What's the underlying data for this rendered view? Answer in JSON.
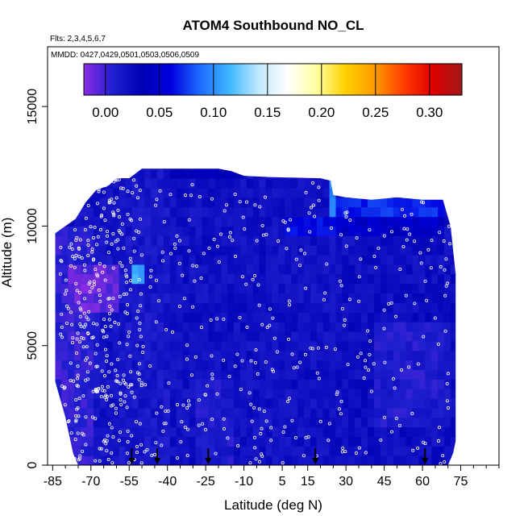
{
  "chart_data": {
    "type": "heatmap",
    "title": "ATOM4 Southbound NO_CL",
    "subtitle_flights": "Flts: 2,3,4,5,6,7",
    "subtitle_dates": "MMDD: 0427,0429,0501,0503,0506,0509",
    "xlabel": "Latitude (deg N)",
    "ylabel": "Altitude (m)",
    "xlim": [
      -87,
      90
    ],
    "ylim": [
      0,
      17500
    ],
    "x_ticks": [
      -85,
      -70,
      -55,
      -40,
      -25,
      -10,
      5,
      15,
      30,
      45,
      60,
      75
    ],
    "x_tick_labels": [
      "-85",
      "-70",
      "-55",
      "-40",
      "-25",
      "-10",
      "5",
      "15",
      "30",
      "45",
      "60",
      "75"
    ],
    "x_minor_ticks": [
      -80,
      -75,
      -65,
      -60,
      -50,
      -45,
      -35,
      -30,
      -20,
      -15,
      -5,
      0,
      10,
      20,
      25,
      35,
      40,
      50,
      55,
      65,
      70,
      80,
      85,
      90
    ],
    "y_ticks": [
      0,
      5000,
      10000,
      15000
    ],
    "y_tick_labels": [
      "0",
      "5000",
      "10000",
      "15000"
    ],
    "colorbar": {
      "range": [
        -0.02,
        0.33
      ],
      "ticks": [
        0.0,
        0.05,
        0.1,
        0.15,
        0.2,
        0.25,
        0.3
      ],
      "tick_labels": [
        "0.00",
        "0.05",
        "0.10",
        "0.15",
        "0.20",
        "0.25",
        "0.30"
      ],
      "colors": [
        "#8a2be2",
        "#2020d0",
        "#0000b4",
        "#0000e0",
        "#1e6cff",
        "#3fb6ff",
        "#bfe8ff",
        "#ffffff",
        "#ffff9e",
        "#ffd000",
        "#ff9a00",
        "#ff3c00",
        "#e00000",
        "#a01818"
      ]
    },
    "profile_latitudes": [
      -54,
      -44,
      -24,
      18,
      61
    ],
    "coverage": {
      "lat_min": -84,
      "lat_max": 73,
      "top_altitude": [
        [
          -84,
          9700
        ],
        [
          -80,
          10000
        ],
        [
          -76,
          10300
        ],
        [
          -72,
          11000
        ],
        [
          -68,
          11500
        ],
        [
          -63,
          11700
        ],
        [
          -60,
          12000
        ],
        [
          -55,
          12000
        ],
        [
          -50,
          12400
        ],
        [
          -20,
          12400
        ],
        [
          -15,
          12300
        ],
        [
          -10,
          12100
        ],
        [
          0,
          12050
        ],
        [
          20,
          12000
        ],
        [
          24,
          11900
        ],
        [
          25,
          11300
        ],
        [
          30,
          11200
        ],
        [
          40,
          11100
        ],
        [
          50,
          11200
        ],
        [
          60,
          11100
        ],
        [
          68,
          11100
        ],
        [
          71,
          10000
        ],
        [
          72,
          9000
        ],
        [
          73,
          8000
        ]
      ],
      "bottom_altitude": [
        [
          -84,
          3500
        ],
        [
          -80,
          2000
        ],
        [
          -77,
          500
        ],
        [
          -75,
          0
        ],
        [
          70,
          0
        ],
        [
          72,
          500
        ],
        [
          73,
          1000
        ]
      ]
    },
    "field_regions": [
      {
        "lat": [
          -84,
          -70
        ],
        "alt": [
          0,
          9800
        ],
        "value": 0.005
      },
      {
        "lat": [
          -78,
          -60
        ],
        "alt": [
          6500,
          8500
        ],
        "value": -0.01
      },
      {
        "lat": [
          -60,
          -40
        ],
        "alt": [
          0,
          12000
        ],
        "value": 0.015
      },
      {
        "lat": [
          -40,
          -10
        ],
        "alt": [
          0,
          12400
        ],
        "value": 0.02
      },
      {
        "lat": [
          -10,
          25
        ],
        "alt": [
          0,
          12000
        ],
        "value": 0.02
      },
      {
        "lat": [
          25,
          73
        ],
        "alt": [
          0,
          11000
        ],
        "value": 0.022
      },
      {
        "lat": [
          -55,
          -50
        ],
        "alt": [
          7500,
          8500
        ],
        "value": 0.11
      },
      {
        "lat": [
          24,
          26
        ],
        "alt": [
          9800,
          12000
        ],
        "value": 0.1
      },
      {
        "lat": [
          26,
          68
        ],
        "alt": [
          10500,
          11000
        ],
        "value": 0.07
      },
      {
        "lat": [
          26,
          68
        ],
        "alt": [
          9500,
          10500
        ],
        "value": 0.045
      },
      {
        "lat": [
          5,
          25
        ],
        "alt": [
          9600,
          10300
        ],
        "value": 0.06
      },
      {
        "lat": [
          -40,
          -10
        ],
        "alt": [
          12000,
          12400
        ],
        "value": 0.035
      },
      {
        "lat": [
          -30,
          -15
        ],
        "alt": [
          200,
          3500
        ],
        "value": 0.01
      },
      {
        "lat": [
          40,
          70
        ],
        "alt": [
          1500,
          6000
        ],
        "value": 0.01
      }
    ]
  }
}
